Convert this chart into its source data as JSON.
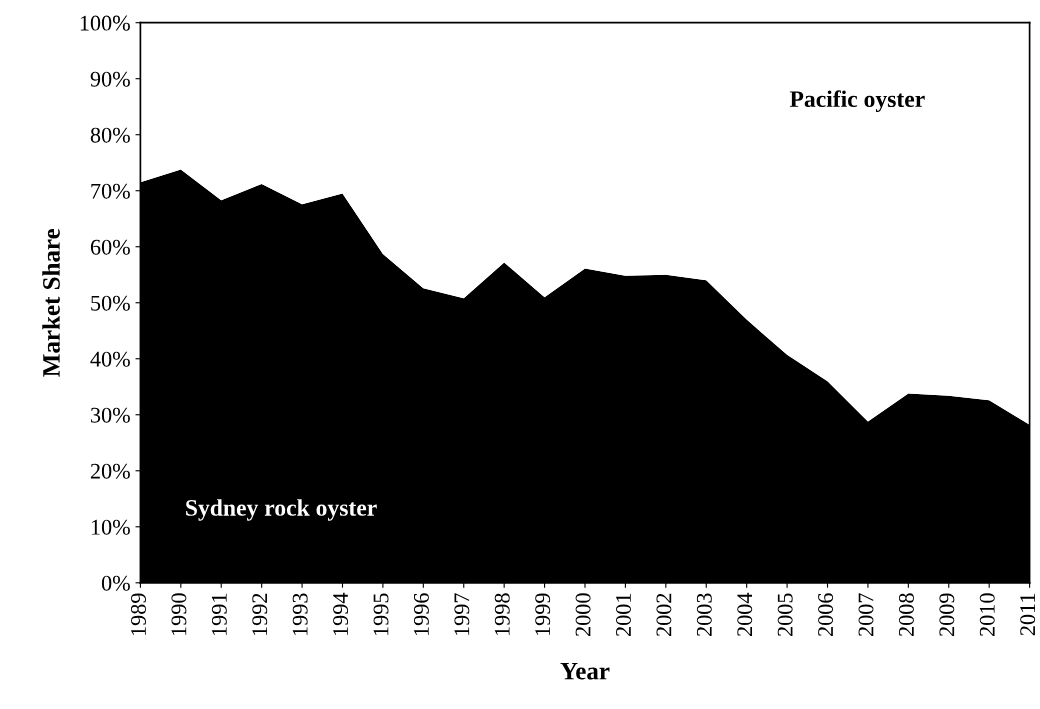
{
  "chart_data": {
    "type": "area",
    "stacked": true,
    "xlabel": "Year",
    "ylabel": "Market Share",
    "x": [
      1989,
      1990,
      1991,
      1992,
      1993,
      1994,
      1995,
      1996,
      1997,
      1998,
      1999,
      2000,
      2001,
      2002,
      2003,
      2004,
      2005,
      2006,
      2007,
      2008,
      2009,
      2010,
      2011
    ],
    "series": [
      {
        "name": "Sydney rock oyster",
        "color": "#000000",
        "values": [
          71.5,
          73.8,
          68.3,
          71.2,
          67.6,
          69.5,
          58.7,
          52.6,
          50.8,
          57.2,
          51.0,
          56.1,
          54.8,
          55.0,
          54.0,
          47.0,
          40.7,
          36.0,
          28.8,
          33.8,
          33.4,
          32.6,
          28.2
        ]
      },
      {
        "name": "Pacific oyster",
        "color": "#ffffff",
        "values": [
          28.5,
          26.2,
          31.7,
          28.8,
          32.4,
          30.5,
          41.3,
          47.4,
          49.2,
          42.8,
          49.0,
          43.9,
          45.2,
          45.0,
          46.0,
          53.0,
          59.3,
          64.0,
          71.2,
          66.2,
          66.6,
          67.4,
          71.8
        ]
      }
    ],
    "xlim": [
      1989,
      2011
    ],
    "xticks": [
      1989,
      1990,
      1991,
      1992,
      1993,
      1994,
      1995,
      1996,
      1997,
      1998,
      1999,
      2000,
      2001,
      2002,
      2003,
      2004,
      2005,
      2006,
      2007,
      2008,
      2009,
      2010,
      2011
    ],
    "ylim": [
      0,
      100
    ],
    "yticks": [
      {
        "value": 0,
        "label": "0%"
      },
      {
        "value": 10,
        "label": "10%"
      },
      {
        "value": 20,
        "label": "20%"
      },
      {
        "value": 30,
        "label": "30%"
      },
      {
        "value": 40,
        "label": "40%"
      },
      {
        "value": 50,
        "label": "50%"
      },
      {
        "value": 60,
        "label": "60%"
      },
      {
        "value": 70,
        "label": "70%"
      },
      {
        "value": 80,
        "label": "80%"
      },
      {
        "value": 90,
        "label": "90%"
      },
      {
        "value": 100,
        "label": "100%"
      }
    ],
    "grid": false,
    "legend": false
  }
}
